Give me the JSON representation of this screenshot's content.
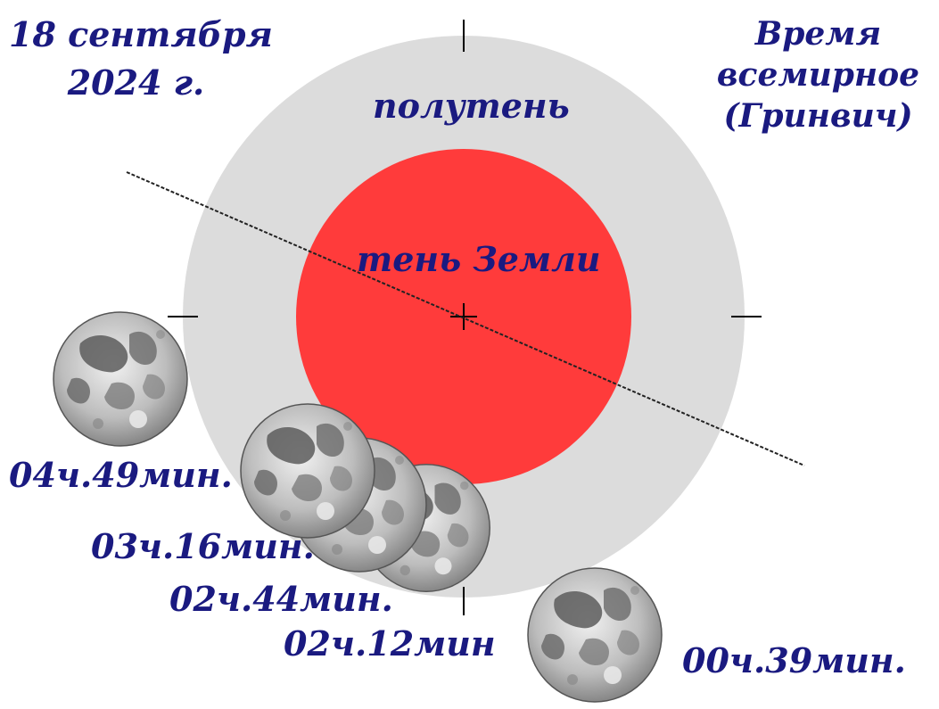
{
  "date": {
    "line1": "18 сентября",
    "line2": "2024 г."
  },
  "time_note": {
    "line1": "Время",
    "line2": "всемирное",
    "line3": "(Гринвич)"
  },
  "zones": {
    "penumbra": "полутень",
    "umbra": "тень Земли"
  },
  "moon_positions": [
    {
      "time": "00ч.39мин."
    },
    {
      "time": "02ч.12мин"
    },
    {
      "time": "02ч.44мин."
    },
    {
      "time": "03ч.16мин."
    },
    {
      "time": "04ч.49мин."
    }
  ],
  "colors": {
    "penumbra": "#dcdcdc",
    "umbra": "#ff3b3b",
    "text": "#1a1a80",
    "moon_light": "#d9d9d9",
    "moon_dark": "#5a5a5a"
  }
}
